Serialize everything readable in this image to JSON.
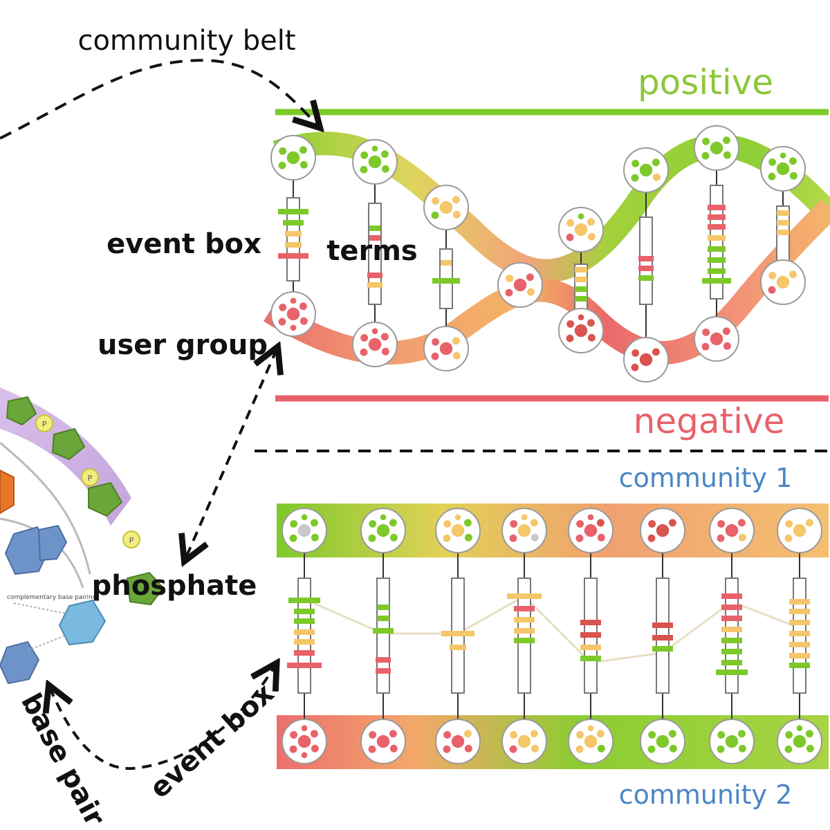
{
  "labels": {
    "community_belt": "community belt",
    "positive": "positive",
    "negative": "negative",
    "event_box_upper": "event box",
    "terms": "terms",
    "user_group": "user group",
    "community_1": "community 1",
    "community_2": "community 2",
    "phosphate": "phosphate",
    "base_pair": "base pair",
    "event_box_lower": "event box",
    "complementary_base_pairing": "complementary base pairing",
    "phosphate_p": "P"
  },
  "colors": {
    "positive": "#7dc92a",
    "negative": "#e8626a",
    "neutral": "#f5c66a",
    "community_label": "#4a86c5",
    "dna_purple": "#c9a8dc",
    "dna_green": "#6aa63a",
    "dna_blue": "#6d93c9",
    "dna_lightblue": "#7ab9e0",
    "dna_orange": "#e8772a",
    "dna_yellow": "#f1ee80"
  },
  "legend": {
    "positive_line_color": "#7dc92a",
    "negative_line_color": "#e8626a"
  }
}
